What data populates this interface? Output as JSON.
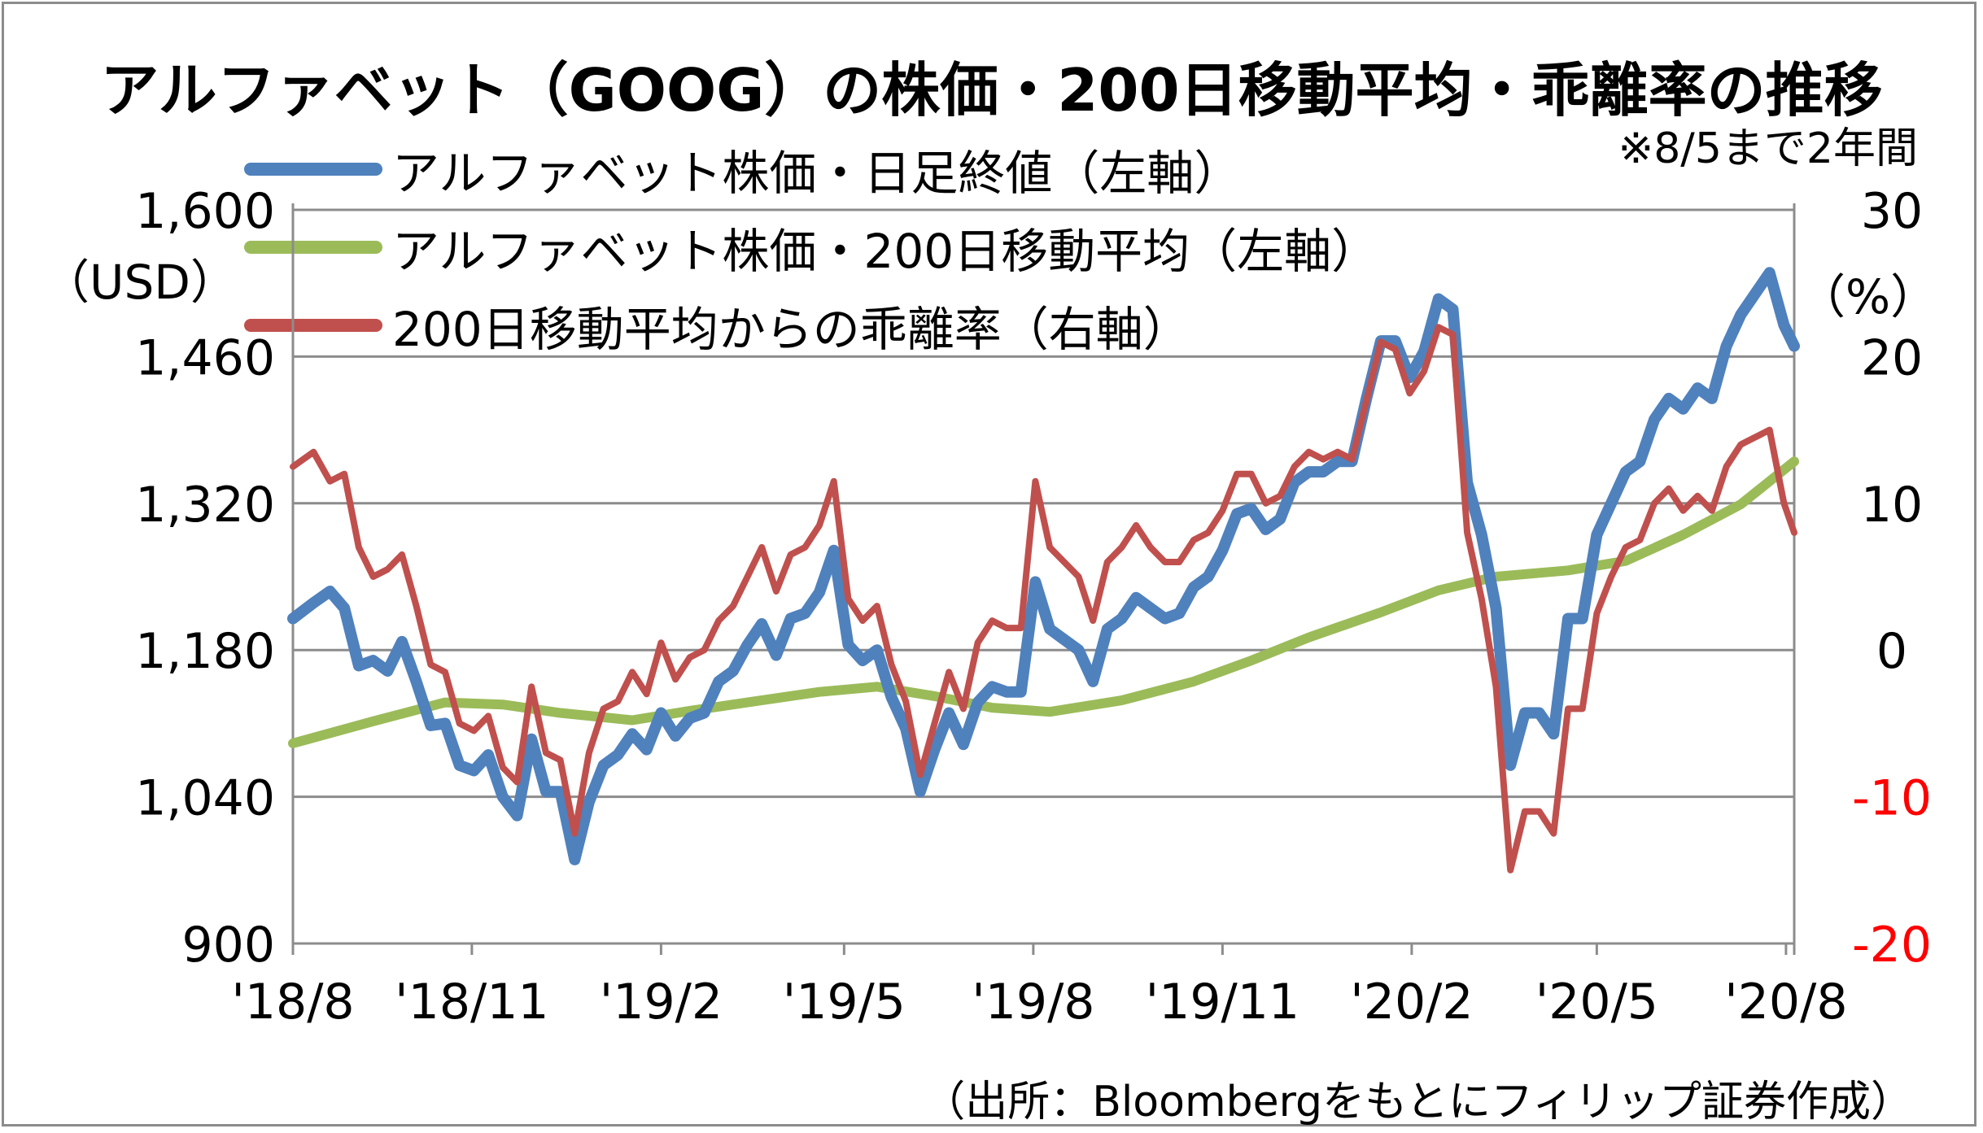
{
  "chart_data": {
    "type": "line",
    "title": "アルファベット（GOOG）の株価・200日移動平均・乖離率の推移",
    "note": "※8/5まで2年間",
    "source": "（出所：Bloombergをもとにフィリップ証券作成）",
    "left_unit": "（USD）",
    "right_unit": "（%）",
    "left_ticks": [
      "900",
      "1,040",
      "1,180",
      "1,320",
      "1,460",
      "1,600"
    ],
    "right_ticks": [
      "-20",
      "-10",
      "0",
      "10",
      "20",
      "30"
    ],
    "left_ylim": [
      900,
      1600
    ],
    "right_ylim": [
      -20,
      30
    ],
    "x_labels": [
      "'18/8",
      "'18/11",
      "'19/2",
      "'19/5",
      "'19/8",
      "'19/11",
      "'20/2",
      "'20/5",
      "'20/8"
    ],
    "x_range": [
      "2018-08-06",
      "2020-08-05"
    ],
    "grid": "horizontal",
    "legend_position": "top-left",
    "colors": {
      "price": "#4f81bd",
      "ma200": "#9bbb59",
      "deviation": "#c0504d",
      "negative_tick": "#ff0000"
    },
    "series": [
      {
        "name": "アルファベット株価・日足終値（左軸）",
        "axis": "left",
        "points": [
          [
            "2018-08-06",
            1210
          ],
          [
            "2018-08-16",
            1225
          ],
          [
            "2018-08-24",
            1236
          ],
          [
            "2018-08-31",
            1220
          ],
          [
            "2018-09-07",
            1165
          ],
          [
            "2018-09-14",
            1170
          ],
          [
            "2018-09-21",
            1160
          ],
          [
            "2018-09-28",
            1188
          ],
          [
            "2018-10-05",
            1150
          ],
          [
            "2018-10-12",
            1108
          ],
          [
            "2018-10-19",
            1110
          ],
          [
            "2018-10-26",
            1070
          ],
          [
            "2018-11-02",
            1065
          ],
          [
            "2018-11-09",
            1080
          ],
          [
            "2018-11-16",
            1040
          ],
          [
            "2018-11-23",
            1022
          ],
          [
            "2018-11-30",
            1095
          ],
          [
            "2018-12-07",
            1045
          ],
          [
            "2018-12-14",
            1045
          ],
          [
            "2018-12-21",
            980
          ],
          [
            "2018-12-28",
            1035
          ],
          [
            "2019-01-04",
            1070
          ],
          [
            "2019-01-11",
            1080
          ],
          [
            "2019-01-18",
            1100
          ],
          [
            "2019-01-25",
            1085
          ],
          [
            "2019-02-01",
            1120
          ],
          [
            "2019-02-08",
            1098
          ],
          [
            "2019-02-15",
            1115
          ],
          [
            "2019-02-22",
            1120
          ],
          [
            "2019-03-01",
            1150
          ],
          [
            "2019-03-08",
            1160
          ],
          [
            "2019-03-15",
            1185
          ],
          [
            "2019-03-22",
            1205
          ],
          [
            "2019-03-29",
            1175
          ],
          [
            "2019-04-05",
            1210
          ],
          [
            "2019-04-12",
            1215
          ],
          [
            "2019-04-19",
            1235
          ],
          [
            "2019-04-26",
            1275
          ],
          [
            "2019-05-03",
            1185
          ],
          [
            "2019-05-10",
            1170
          ],
          [
            "2019-05-17",
            1180
          ],
          [
            "2019-05-24",
            1135
          ],
          [
            "2019-05-31",
            1105
          ],
          [
            "2019-06-07",
            1045
          ],
          [
            "2019-06-14",
            1085
          ],
          [
            "2019-06-21",
            1120
          ],
          [
            "2019-06-28",
            1090
          ],
          [
            "2019-07-05",
            1130
          ],
          [
            "2019-07-12",
            1145
          ],
          [
            "2019-07-19",
            1140
          ],
          [
            "2019-07-26",
            1140
          ],
          [
            "2019-08-02",
            1245
          ],
          [
            "2019-08-09",
            1200
          ],
          [
            "2019-08-16",
            1190
          ],
          [
            "2019-08-23",
            1180
          ],
          [
            "2019-08-30",
            1150
          ],
          [
            "2019-09-06",
            1200
          ],
          [
            "2019-09-13",
            1210
          ],
          [
            "2019-09-20",
            1230
          ],
          [
            "2019-09-27",
            1220
          ],
          [
            "2019-10-04",
            1210
          ],
          [
            "2019-10-11",
            1215
          ],
          [
            "2019-10-18",
            1240
          ],
          [
            "2019-10-25",
            1250
          ],
          [
            "2019-11-01",
            1275
          ],
          [
            "2019-11-08",
            1310
          ],
          [
            "2019-11-15",
            1315
          ],
          [
            "2019-11-22",
            1295
          ],
          [
            "2019-11-29",
            1305
          ],
          [
            "2019-12-06",
            1340
          ],
          [
            "2019-12-13",
            1350
          ],
          [
            "2019-12-20",
            1350
          ],
          [
            "2019-12-27",
            1360
          ],
          [
            "2020-01-03",
            1360
          ],
          [
            "2020-01-10",
            1420
          ],
          [
            "2020-01-17",
            1475
          ],
          [
            "2020-01-24",
            1475
          ],
          [
            "2020-01-31",
            1440
          ],
          [
            "2020-02-07",
            1465
          ],
          [
            "2020-02-14",
            1515
          ],
          [
            "2020-02-21",
            1505
          ],
          [
            "2020-02-28",
            1340
          ],
          [
            "2020-03-06",
            1290
          ],
          [
            "2020-03-13",
            1220
          ],
          [
            "2020-03-20",
            1070
          ],
          [
            "2020-03-27",
            1120
          ],
          [
            "2020-04-03",
            1120
          ],
          [
            "2020-04-10",
            1100
          ],
          [
            "2020-04-17",
            1210
          ],
          [
            "2020-04-24",
            1210
          ],
          [
            "2020-05-01",
            1290
          ],
          [
            "2020-05-08",
            1320
          ],
          [
            "2020-05-15",
            1350
          ],
          [
            "2020-05-22",
            1360
          ],
          [
            "2020-05-29",
            1400
          ],
          [
            "2020-06-05",
            1420
          ],
          [
            "2020-06-12",
            1410
          ],
          [
            "2020-06-19",
            1430
          ],
          [
            "2020-06-26",
            1420
          ],
          [
            "2020-07-03",
            1470
          ],
          [
            "2020-07-10",
            1500
          ],
          [
            "2020-07-17",
            1520
          ],
          [
            "2020-07-24",
            1540
          ],
          [
            "2020-07-31",
            1490
          ],
          [
            "2020-08-05",
            1470
          ]
        ]
      },
      {
        "name": "アルファベット株価・200日移動平均（左軸）",
        "axis": "left",
        "points": [
          [
            "2018-08-06",
            1091
          ],
          [
            "2018-09-14",
            1112
          ],
          [
            "2018-10-19",
            1130
          ],
          [
            "2018-11-16",
            1128
          ],
          [
            "2018-12-14",
            1120
          ],
          [
            "2019-01-18",
            1113
          ],
          [
            "2019-02-15",
            1122
          ],
          [
            "2019-03-15",
            1130
          ],
          [
            "2019-04-19",
            1140
          ],
          [
            "2019-05-17",
            1145
          ],
          [
            "2019-06-14",
            1136
          ],
          [
            "2019-07-12",
            1125
          ],
          [
            "2019-08-09",
            1121
          ],
          [
            "2019-09-13",
            1132
          ],
          [
            "2019-10-18",
            1150
          ],
          [
            "2019-11-15",
            1170
          ],
          [
            "2019-12-13",
            1192
          ],
          [
            "2020-01-17",
            1216
          ],
          [
            "2020-02-14",
            1237
          ],
          [
            "2020-03-13",
            1250
          ],
          [
            "2020-04-17",
            1256
          ],
          [
            "2020-05-15",
            1265
          ],
          [
            "2020-06-12",
            1290
          ],
          [
            "2020-07-10",
            1319
          ],
          [
            "2020-08-05",
            1360
          ]
        ]
      },
      {
        "name": "200日移動平均からの乖離率（右軸）",
        "axis": "right",
        "points": [
          [
            "2018-08-06",
            12.5
          ],
          [
            "2018-08-16",
            13.5
          ],
          [
            "2018-08-24",
            11.5
          ],
          [
            "2018-08-31",
            12.0
          ],
          [
            "2018-09-07",
            7.0
          ],
          [
            "2018-09-14",
            5.0
          ],
          [
            "2018-09-21",
            5.5
          ],
          [
            "2018-09-28",
            6.5
          ],
          [
            "2018-10-05",
            3.0
          ],
          [
            "2018-10-12",
            -1.0
          ],
          [
            "2018-10-19",
            -1.5
          ],
          [
            "2018-10-26",
            -5.0
          ],
          [
            "2018-11-02",
            -5.5
          ],
          [
            "2018-11-09",
            -4.5
          ],
          [
            "2018-11-16",
            -8.0
          ],
          [
            "2018-11-23",
            -9.0
          ],
          [
            "2018-11-30",
            -2.5
          ],
          [
            "2018-12-07",
            -7.0
          ],
          [
            "2018-12-14",
            -7.5
          ],
          [
            "2018-12-21",
            -12.5
          ],
          [
            "2018-12-28",
            -7.0
          ],
          [
            "2019-01-04",
            -4.0
          ],
          [
            "2019-01-11",
            -3.5
          ],
          [
            "2019-01-18",
            -1.5
          ],
          [
            "2019-01-25",
            -3.0
          ],
          [
            "2019-02-01",
            0.5
          ],
          [
            "2019-02-08",
            -2.0
          ],
          [
            "2019-02-15",
            -0.5
          ],
          [
            "2019-02-22",
            0.0
          ],
          [
            "2019-03-01",
            2.0
          ],
          [
            "2019-03-08",
            3.0
          ],
          [
            "2019-03-15",
            5.0
          ],
          [
            "2019-03-22",
            7.0
          ],
          [
            "2019-03-29",
            4.0
          ],
          [
            "2019-04-05",
            6.5
          ],
          [
            "2019-04-12",
            7.0
          ],
          [
            "2019-04-19",
            8.5
          ],
          [
            "2019-04-26",
            11.5
          ],
          [
            "2019-05-03",
            3.5
          ],
          [
            "2019-05-10",
            2.0
          ],
          [
            "2019-05-17",
            3.0
          ],
          [
            "2019-05-24",
            -1.0
          ],
          [
            "2019-05-31",
            -3.5
          ],
          [
            "2019-06-07",
            -8.5
          ],
          [
            "2019-06-14",
            -5.0
          ],
          [
            "2019-06-21",
            -1.5
          ],
          [
            "2019-06-28",
            -4.0
          ],
          [
            "2019-07-05",
            0.5
          ],
          [
            "2019-07-12",
            2.0
          ],
          [
            "2019-07-19",
            1.5
          ],
          [
            "2019-07-26",
            1.5
          ],
          [
            "2019-08-02",
            11.5
          ],
          [
            "2019-08-09",
            7.0
          ],
          [
            "2019-08-16",
            6.0
          ],
          [
            "2019-08-23",
            5.0
          ],
          [
            "2019-08-30",
            2.0
          ],
          [
            "2019-09-06",
            6.0
          ],
          [
            "2019-09-13",
            7.0
          ],
          [
            "2019-09-20",
            8.5
          ],
          [
            "2019-09-27",
            7.0
          ],
          [
            "2019-10-04",
            6.0
          ],
          [
            "2019-10-11",
            6.0
          ],
          [
            "2019-10-18",
            7.5
          ],
          [
            "2019-10-25",
            8.0
          ],
          [
            "2019-11-01",
            9.5
          ],
          [
            "2019-11-08",
            12.0
          ],
          [
            "2019-11-15",
            12.0
          ],
          [
            "2019-11-22",
            10.0
          ],
          [
            "2019-11-29",
            10.5
          ],
          [
            "2019-12-06",
            12.5
          ],
          [
            "2019-12-13",
            13.5
          ],
          [
            "2019-12-20",
            13.0
          ],
          [
            "2019-12-27",
            13.5
          ],
          [
            "2020-01-03",
            13.0
          ],
          [
            "2020-01-10",
            17.0
          ],
          [
            "2020-01-17",
            21.0
          ],
          [
            "2020-01-24",
            20.5
          ],
          [
            "2020-01-31",
            17.5
          ],
          [
            "2020-02-07",
            19.0
          ],
          [
            "2020-02-14",
            22.0
          ],
          [
            "2020-02-21",
            21.5
          ],
          [
            "2020-02-28",
            8.0
          ],
          [
            "2020-03-06",
            3.5
          ],
          [
            "2020-03-13",
            -2.5
          ],
          [
            "2020-03-20",
            -15.0
          ],
          [
            "2020-03-27",
            -11.0
          ],
          [
            "2020-04-03",
            -11.0
          ],
          [
            "2020-04-10",
            -12.5
          ],
          [
            "2020-04-17",
            -4.0
          ],
          [
            "2020-04-24",
            -4.0
          ],
          [
            "2020-05-01",
            2.5
          ],
          [
            "2020-05-08",
            5.0
          ],
          [
            "2020-05-15",
            7.0
          ],
          [
            "2020-05-22",
            7.5
          ],
          [
            "2020-05-29",
            10.0
          ],
          [
            "2020-06-05",
            11.0
          ],
          [
            "2020-06-12",
            9.5
          ],
          [
            "2020-06-19",
            10.5
          ],
          [
            "2020-06-26",
            9.5
          ],
          [
            "2020-07-03",
            12.5
          ],
          [
            "2020-07-10",
            14.0
          ],
          [
            "2020-07-17",
            14.5
          ],
          [
            "2020-07-24",
            15.0
          ],
          [
            "2020-07-31",
            10.0
          ],
          [
            "2020-08-05",
            8.0
          ]
        ]
      }
    ]
  }
}
